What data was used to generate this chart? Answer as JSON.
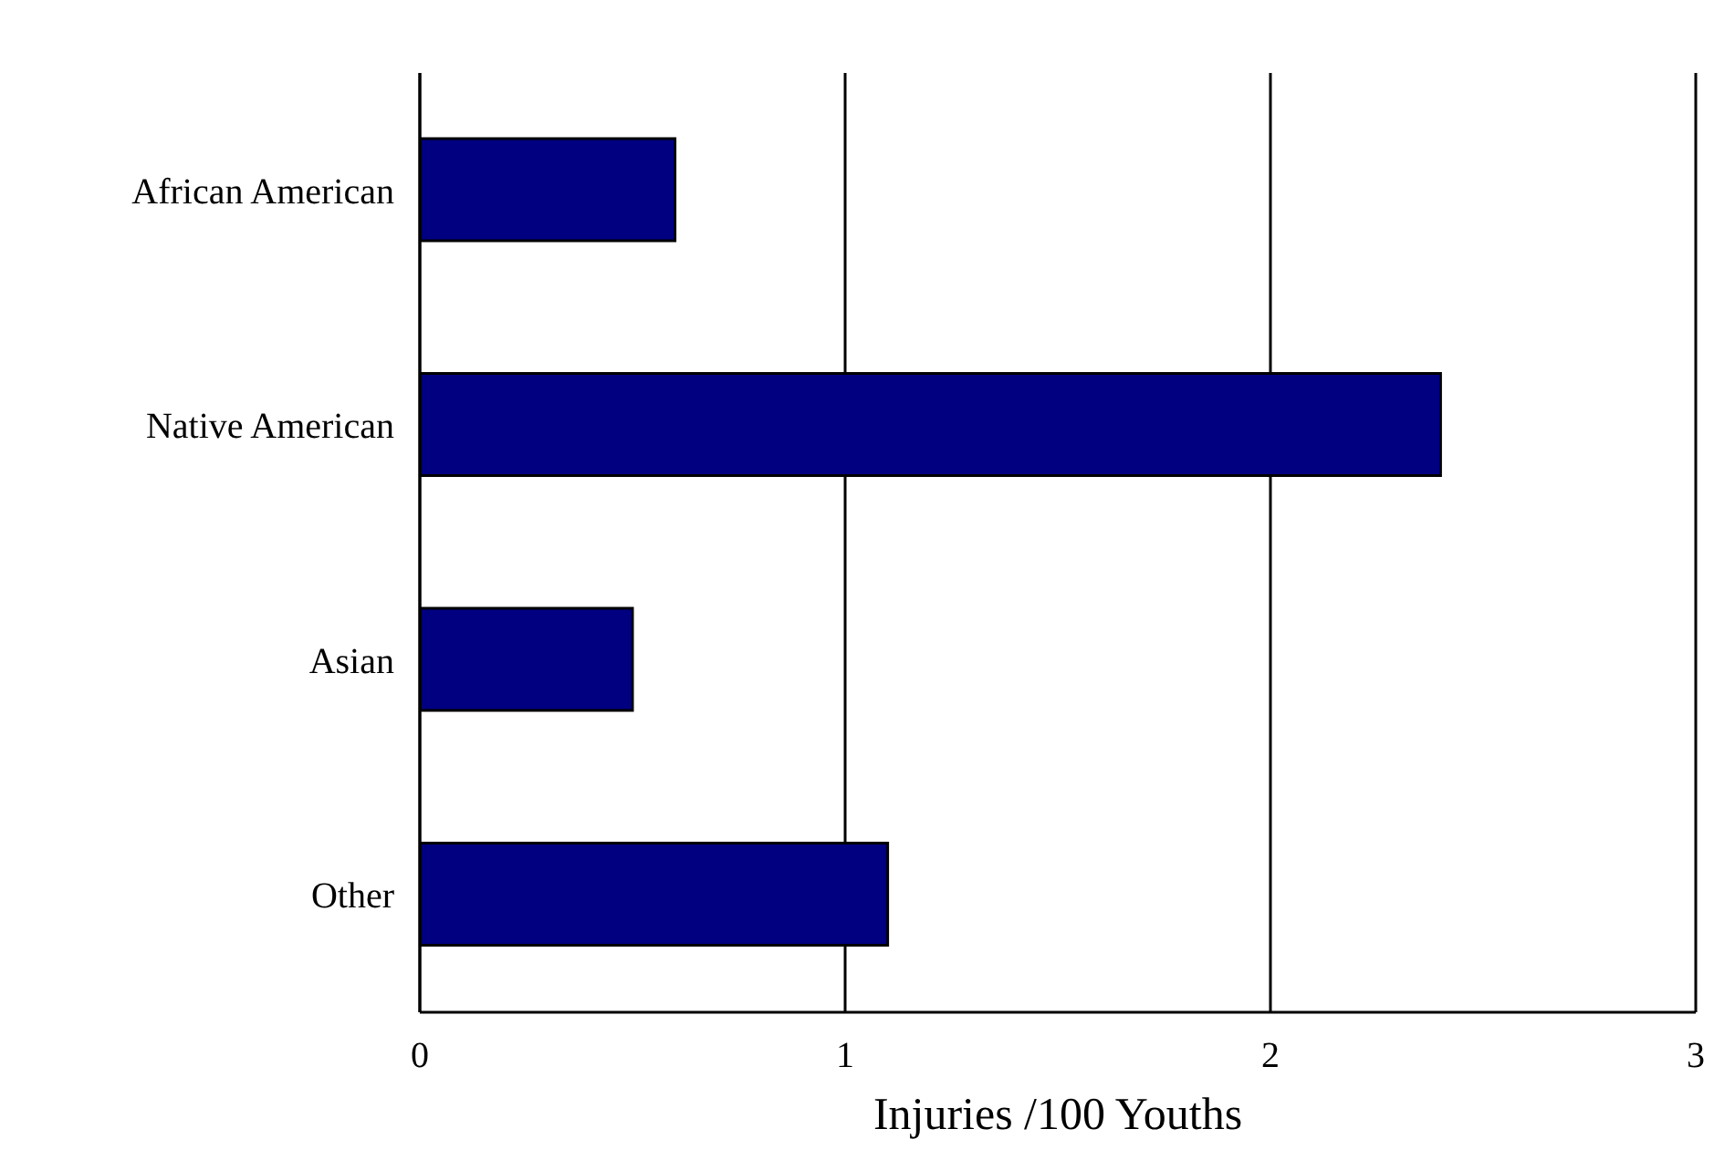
{
  "chart_data": {
    "type": "bar",
    "orientation": "horizontal",
    "categories": [
      "African American",
      "Native American",
      "Asian",
      "Other"
    ],
    "values": [
      0.6,
      2.4,
      0.5,
      1.1
    ],
    "color": "#000080",
    "xlabel": "Injuries /100 Youths",
    "xlim": [
      0,
      3
    ],
    "xticks": [
      0,
      1,
      2,
      3
    ],
    "grid": "x",
    "legend": false
  }
}
